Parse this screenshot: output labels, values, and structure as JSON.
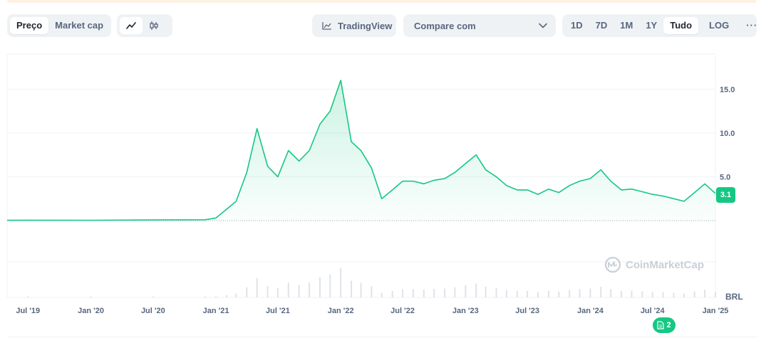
{
  "toolbar": {
    "metric_tabs": [
      "Preço",
      "Market cap"
    ],
    "active_metric": "Preço",
    "chart_styles": [
      "line-chart-icon",
      "candlestick-icon"
    ],
    "active_style": "line-chart-icon",
    "tradingview_label": "TradingView",
    "compare_label": "Compare com",
    "ranges": [
      "1D",
      "7D",
      "1M",
      "1Y",
      "Tudo"
    ],
    "active_range": "Tudo",
    "log_label": "LOG",
    "more_label": "···"
  },
  "chart": {
    "currency_label": "BRL",
    "current_price_label": "3.1",
    "y_ticks": [
      "15.0",
      "10.0",
      "5.0"
    ],
    "x_ticks": [
      "Jul '19",
      "Jan '20",
      "Jul '20",
      "Jan '21",
      "Jul '21",
      "Jan '22",
      "Jul '22",
      "Jan '23",
      "Jul '23",
      "Jan '24",
      "Jul '24",
      "Jan '25"
    ],
    "watermark": "CoinMarketCap",
    "news_count": "2",
    "line_color": "#16c784"
  },
  "chart_data": {
    "type": "line",
    "xlabel": "",
    "ylabel": "",
    "ylim": [
      0,
      19
    ],
    "x": [
      "2019-05",
      "2019-07",
      "2020-01",
      "2020-07",
      "2020-12",
      "2021-01",
      "2021-02",
      "2021-03",
      "2021-04",
      "2021-05",
      "2021-06",
      "2021-07",
      "2021-08",
      "2021-09",
      "2021-10",
      "2021-11",
      "2021-12",
      "2022-01",
      "2022-02",
      "2022-03",
      "2022-04",
      "2022-05",
      "2022-06",
      "2022-07",
      "2022-08",
      "2022-09",
      "2022-10",
      "2022-11",
      "2022-12",
      "2023-01",
      "2023-02",
      "2023-03",
      "2023-04",
      "2023-05",
      "2023-06",
      "2023-07",
      "2023-08",
      "2023-09",
      "2023-10",
      "2023-11",
      "2023-12",
      "2024-01",
      "2024-02",
      "2024-03",
      "2024-04",
      "2024-05",
      "2024-06",
      "2024-07",
      "2024-08",
      "2024-09",
      "2024-10",
      "2024-11",
      "2024-12",
      "2025-01"
    ],
    "series": [
      {
        "values": [
          0.03,
          0.05,
          0.04,
          0.07,
          0.1,
          0.3,
          1.3,
          2.2,
          5.5,
          10.5,
          6.2,
          5.0,
          8.0,
          6.8,
          8.0,
          11.0,
          12.5,
          16.0,
          9.0,
          8.0,
          6.0,
          2.5,
          3.5,
          4.5,
          4.5,
          4.2,
          4.6,
          4.8,
          5.5,
          6.5,
          7.5,
          5.8,
          5.0,
          4.0,
          3.5,
          3.5,
          3.0,
          3.6,
          3.2,
          4.0,
          4.5,
          4.8,
          5.8,
          4.5,
          3.5,
          3.6,
          3.3,
          3.0,
          2.8,
          2.5,
          2.2,
          3.2,
          4.2,
          3.1
        ]
      }
    ]
  }
}
